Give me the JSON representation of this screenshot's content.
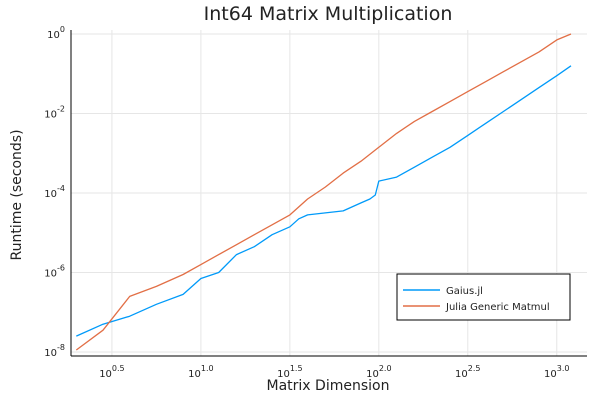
{
  "chart_data": {
    "type": "line",
    "title": "Int64 Matrix Multiplication",
    "xlabel": "Matrix Dimension",
    "ylabel": "Runtime (seconds)",
    "x_scale": "log10",
    "y_scale": "log10",
    "xlim_log10": [
      0.27,
      3.17
    ],
    "ylim_log10": [
      -8.1,
      0.1
    ],
    "grid": true,
    "legend_position": "bottom-right",
    "x_ticks": [
      {
        "base": "10",
        "exp": "0.5",
        "value": 0.5
      },
      {
        "base": "10",
        "exp": "1.0",
        "value": 1.0
      },
      {
        "base": "10",
        "exp": "1.5",
        "value": 1.5
      },
      {
        "base": "10",
        "exp": "2.0",
        "value": 2.0
      },
      {
        "base": "10",
        "exp": "2.5",
        "value": 2.5
      },
      {
        "base": "10",
        "exp": "3.0",
        "value": 3.0
      }
    ],
    "y_ticks": [
      {
        "base": "10",
        "exp": "0",
        "value": 0
      },
      {
        "base": "10",
        "exp": "-2",
        "value": -2
      },
      {
        "base": "10",
        "exp": "-4",
        "value": -4
      },
      {
        "base": "10",
        "exp": "-6",
        "value": -6
      },
      {
        "base": "10",
        "exp": "-8",
        "value": -8
      }
    ],
    "series": [
      {
        "name": "Gaius.jl",
        "color": "#009af9",
        "log10_x": [
          0.3,
          0.45,
          0.6,
          0.75,
          0.9,
          1.0,
          1.1,
          1.2,
          1.3,
          1.4,
          1.5,
          1.55,
          1.6,
          1.7,
          1.8,
          1.85,
          1.9,
          1.95,
          1.98,
          2.0,
          2.1,
          2.2,
          2.3,
          2.4,
          2.5,
          2.6,
          2.7,
          2.8,
          2.9,
          3.0,
          3.08
        ],
        "log10_y": [
          -7.6,
          -7.3,
          -7.1,
          -6.8,
          -6.55,
          -6.15,
          -6.0,
          -5.55,
          -5.35,
          -5.05,
          -4.85,
          -4.65,
          -4.55,
          -4.5,
          -4.45,
          -4.35,
          -4.25,
          -4.15,
          -4.05,
          -3.7,
          -3.6,
          -3.35,
          -3.1,
          -2.85,
          -2.55,
          -2.25,
          -1.95,
          -1.65,
          -1.35,
          -1.05,
          -0.8
        ]
      },
      {
        "name": "Julia Generic Matmul",
        "color": "#e26f46",
        "log10_x": [
          0.3,
          0.45,
          0.6,
          0.75,
          0.9,
          1.0,
          1.1,
          1.2,
          1.3,
          1.4,
          1.5,
          1.6,
          1.7,
          1.8,
          1.9,
          2.0,
          2.1,
          2.2,
          2.3,
          2.4,
          2.5,
          2.6,
          2.7,
          2.8,
          2.9,
          3.0,
          3.08
        ],
        "log10_y": [
          -7.95,
          -7.45,
          -6.6,
          -6.35,
          -6.05,
          -5.8,
          -5.55,
          -5.3,
          -5.05,
          -4.8,
          -4.55,
          -4.15,
          -3.85,
          -3.5,
          -3.2,
          -2.85,
          -2.5,
          -2.2,
          -1.95,
          -1.7,
          -1.45,
          -1.2,
          -0.95,
          -0.7,
          -0.45,
          -0.15,
          0.0
        ]
      }
    ]
  }
}
